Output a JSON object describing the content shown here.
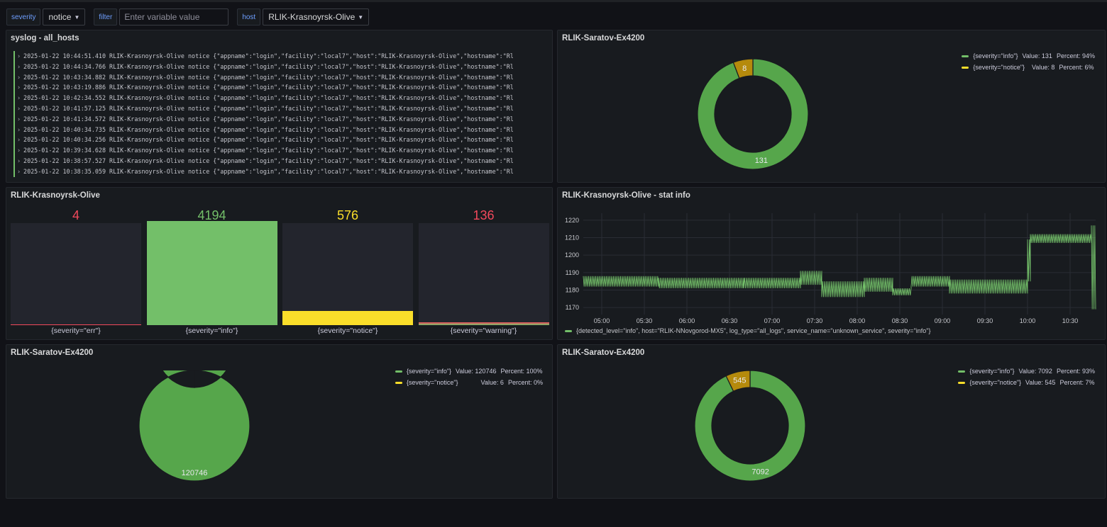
{
  "variables": {
    "severity": {
      "label": "severity",
      "value": "notice"
    },
    "filter": {
      "label": "filter",
      "placeholder": "Enter variable value"
    },
    "host": {
      "label": "host",
      "value": "RLIK-Krasnoyrsk-Olive"
    }
  },
  "icons": {
    "dropdown": "chevron-down-icon",
    "expand": "chevron-right-icon"
  },
  "colors": {
    "info": "#56a64b",
    "notice": "#e0b400",
    "notice_donut": "#b58a0c",
    "err": "#f2495c",
    "warning": "#f2495c",
    "value_info": "#73bf69",
    "value_notice": "#fade2a"
  },
  "logs": {
    "title": "syslog - all_hosts",
    "lines": [
      "2025-01-22 10:44:51.410  RLIK-Krasnoyrsk-Olive notice {\"appname\":\"login\",\"facility\":\"local7\",\"host\":\"RLIK-Krasnoyrsk-Olive\",\"hostname\":\"Rl",
      "2025-01-22 10:44:34.766  RLIK-Krasnoyrsk-Olive notice {\"appname\":\"login\",\"facility\":\"local7\",\"host\":\"RLIK-Krasnoyrsk-Olive\",\"hostname\":\"Rl",
      "2025-01-22 10:43:34.882  RLIK-Krasnoyrsk-Olive notice {\"appname\":\"login\",\"facility\":\"local7\",\"host\":\"RLIK-Krasnoyrsk-Olive\",\"hostname\":\"Rl",
      "2025-01-22 10:43:19.886  RLIK-Krasnoyrsk-Olive notice {\"appname\":\"login\",\"facility\":\"local7\",\"host\":\"RLIK-Krasnoyrsk-Olive\",\"hostname\":\"Rl",
      "2025-01-22 10:42:34.552  RLIK-Krasnoyrsk-Olive notice {\"appname\":\"login\",\"facility\":\"local7\",\"host\":\"RLIK-Krasnoyrsk-Olive\",\"hostname\":\"Rl",
      "2025-01-22 10:41:57.125  RLIK-Krasnoyrsk-Olive notice {\"appname\":\"login\",\"facility\":\"local7\",\"host\":\"RLIK-Krasnoyrsk-Olive\",\"hostname\":\"Rl",
      "2025-01-22 10:41:34.572  RLIK-Krasnoyrsk-Olive notice {\"appname\":\"login\",\"facility\":\"local7\",\"host\":\"RLIK-Krasnoyrsk-Olive\",\"hostname\":\"Rl",
      "2025-01-22 10:40:34.735  RLIK-Krasnoyrsk-Olive notice {\"appname\":\"login\",\"facility\":\"local7\",\"host\":\"RLIK-Krasnoyrsk-Olive\",\"hostname\":\"Rl",
      "2025-01-22 10:40:34.256  RLIK-Krasnoyrsk-Olive notice {\"appname\":\"login\",\"facility\":\"local7\",\"host\":\"RLIK-Krasnoyrsk-Olive\",\"hostname\":\"Rl",
      "2025-01-22 10:39:34.628  RLIK-Krasnoyrsk-Olive notice {\"appname\":\"login\",\"facility\":\"local7\",\"host\":\"RLIK-Krasnoyrsk-Olive\",\"hostname\":\"Rl",
      "2025-01-22 10:38:57.527  RLIK-Krasnoyrsk-Olive notice {\"appname\":\"login\",\"facility\":\"local7\",\"host\":\"RLIK-Krasnoyrsk-Olive\",\"hostname\":\"Rl",
      "2025-01-22 10:38:35.059  RLIK-Krasnoyrsk-Olive notice {\"appname\":\"login\",\"facility\":\"local7\",\"host\":\"RLIK-Krasnoyrsk-Olive\",\"hostname\":\"Rl"
    ]
  },
  "chart_data": [
    {
      "type": "pie",
      "panel": "donut1",
      "title": "RLIK-Saratov-Ex4200",
      "categories": [
        "{severity=\"info\"}",
        "{severity=\"notice\"}"
      ],
      "values": [
        131,
        8
      ],
      "percents": [
        "94%",
        "6%"
      ],
      "legend": "top-right"
    },
    {
      "type": "bar",
      "panel": "bargauge",
      "title": "RLIK-Krasnoyrsk-Olive",
      "categories": [
        "{severity=\"err\"}",
        "{severity=\"info\"}",
        "{severity=\"notice\"}",
        "{severity=\"warning\"}"
      ],
      "values": [
        4,
        4194,
        576,
        136
      ],
      "value_labels": [
        "4",
        "4194",
        "576",
        "136"
      ],
      "ylim": [
        0,
        4194
      ]
    },
    {
      "type": "line",
      "panel": "timeseries",
      "title": "RLIK-Krasnoyrsk-Olive - stat info",
      "x_ticks": [
        "05:00",
        "05:30",
        "06:00",
        "06:30",
        "07:00",
        "07:30",
        "08:00",
        "08:30",
        "09:00",
        "09:30",
        "10:00",
        "10:30"
      ],
      "y_ticks": [
        "1170",
        "1180",
        "1190",
        "1200",
        "1210",
        "1220"
      ],
      "ylim": [
        1166,
        1224
      ],
      "xlim": [
        "04:47",
        "10:48"
      ],
      "grid": true,
      "legend": "bottom",
      "series": [
        {
          "name": "{detected_level=\"info\", host=\"RLIK-NNovgorod-MX5\", log_type=\"all_logs\", service_name=\"unknown_service\", severity=\"info\"}",
          "segments": [
            {
              "from": "04:47",
              "to": "05:40",
              "low": 1182,
              "high": 1188
            },
            {
              "from": "05:40",
              "to": "06:40",
              "low": 1181,
              "high": 1187
            },
            {
              "from": "06:40",
              "to": "07:20",
              "low": 1181,
              "high": 1187
            },
            {
              "from": "07:20",
              "to": "07:35",
              "low": 1183,
              "high": 1191
            },
            {
              "from": "07:35",
              "to": "08:05",
              "low": 1176,
              "high": 1185
            },
            {
              "from": "08:05",
              "to": "08:25",
              "low": 1179,
              "high": 1187
            },
            {
              "from": "08:25",
              "to": "08:38",
              "low": 1177,
              "high": 1181
            },
            {
              "from": "08:38",
              "to": "09:05",
              "low": 1182,
              "high": 1188
            },
            {
              "from": "09:05",
              "to": "10:00",
              "low": 1178,
              "high": 1186
            },
            {
              "from": "10:00",
              "to": "10:02",
              "low": 1185,
              "high": 1209
            },
            {
              "from": "10:02",
              "to": "10:45",
              "low": 1207,
              "high": 1212
            },
            {
              "from": "10:45",
              "to": "10:48",
              "low": 1169,
              "high": 1217
            }
          ]
        }
      ]
    },
    {
      "type": "pie",
      "panel": "donut2",
      "title": "RLIK-Saratov-Ex4200",
      "categories": [
        "{severity=\"info\"}",
        "{severity=\"notice\"}"
      ],
      "values": [
        120746,
        6
      ],
      "percents": [
        "100%",
        "0%"
      ],
      "legend": "top-right"
    },
    {
      "type": "pie",
      "panel": "donut3",
      "title": "RLIK-Saratov-Ex4200",
      "categories": [
        "{severity=\"info\"}",
        "{severity=\"notice\"}"
      ],
      "values": [
        7092,
        545
      ],
      "percents": [
        "93%",
        "7%"
      ],
      "legend": "top-right"
    }
  ]
}
